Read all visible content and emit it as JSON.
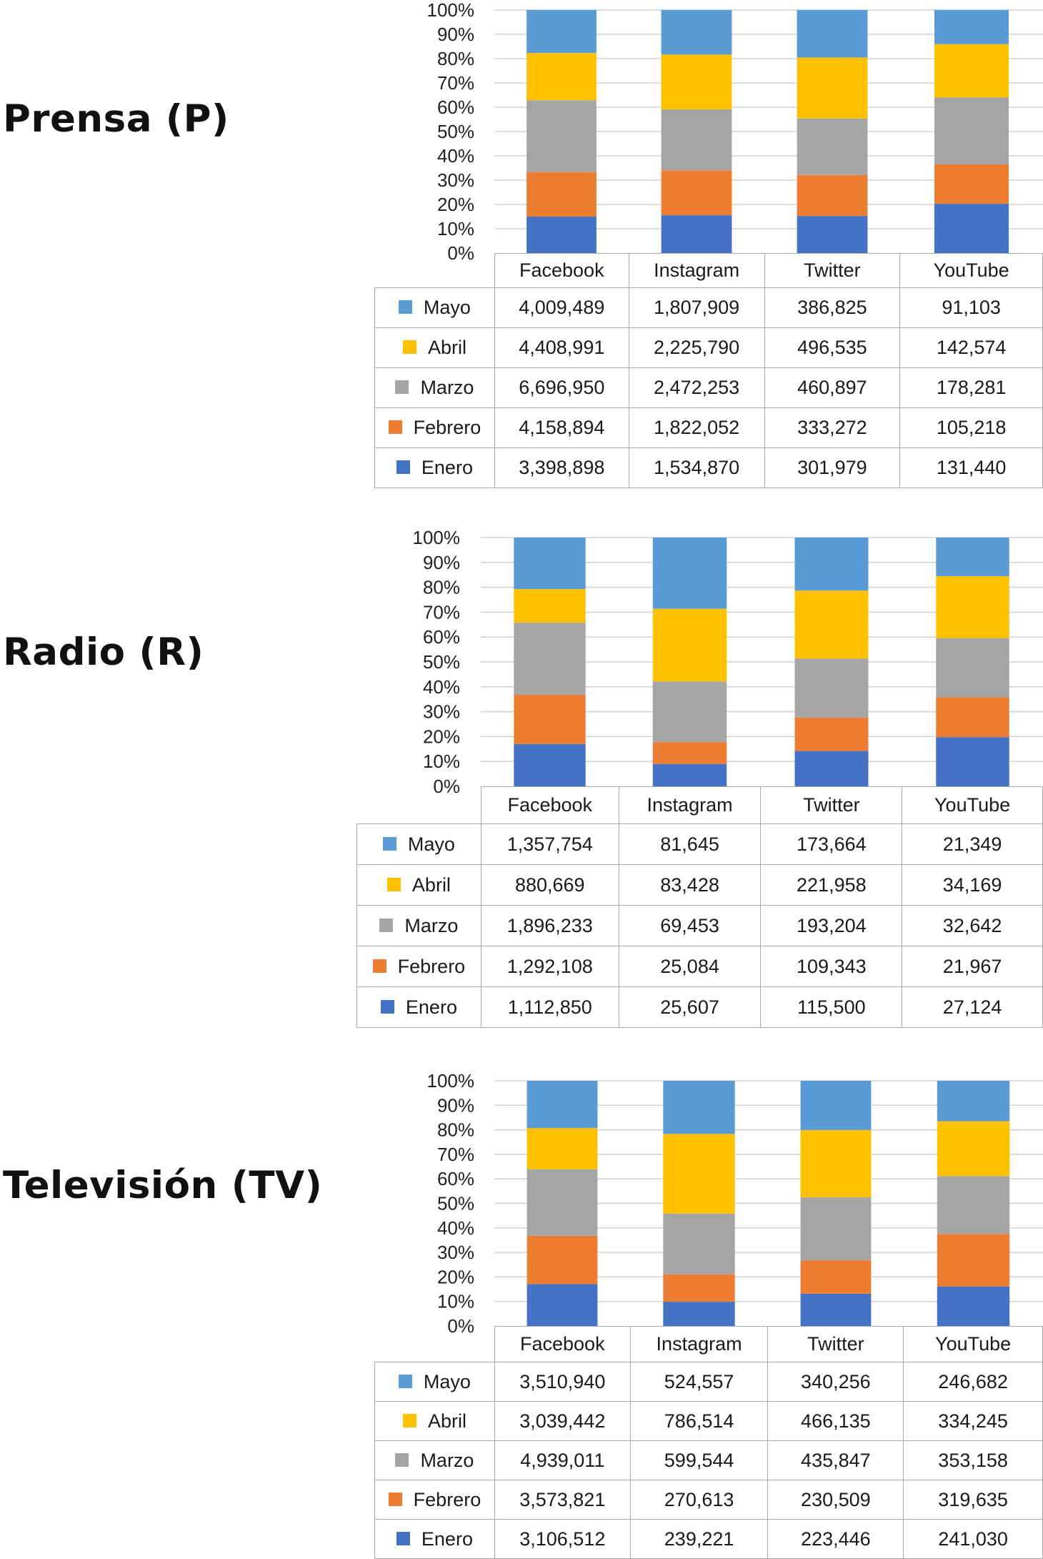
{
  "categories": [
    "Facebook",
    "Instagram",
    "Twitter",
    "YouTube"
  ],
  "legend_order": [
    "Mayo",
    "Abril",
    "Marzo",
    "Febrero",
    "Enero"
  ],
  "colors": {
    "Enero": "#4472c4",
    "Febrero": "#ed7d31",
    "Marzo": "#a5a5a5",
    "Abril": "#ffc000",
    "Mayo": "#5b9bd5"
  },
  "y_ticks": [
    "0%",
    "10%",
    "20%",
    "30%",
    "40%",
    "50%",
    "60%",
    "70%",
    "80%",
    "90%",
    "100%"
  ],
  "chart_data": [
    {
      "type": "bar",
      "stacked": "percent",
      "title": "Prensa (P)",
      "ylim": [
        0,
        100
      ],
      "grid": true,
      "legend": "table-left",
      "categories": [
        "Facebook",
        "Instagram",
        "Twitter",
        "YouTube"
      ],
      "series": [
        {
          "name": "Enero",
          "values": [
            3398898,
            1534870,
            301979,
            131440
          ],
          "labels": [
            "3,398,898",
            "1,534,870",
            "301,979",
            "131,440"
          ]
        },
        {
          "name": "Febrero",
          "values": [
            4158894,
            1822052,
            333272,
            105218
          ],
          "labels": [
            "4,158,894",
            "1,822,052",
            "333,272",
            "105,218"
          ]
        },
        {
          "name": "Marzo",
          "values": [
            6696950,
            2472253,
            460897,
            178281
          ],
          "labels": [
            "6,696,950",
            "2,472,253",
            "460,897",
            "178,281"
          ]
        },
        {
          "name": "Abril",
          "values": [
            4408991,
            2225790,
            496535,
            142574
          ],
          "labels": [
            "4,408,991",
            "2,225,790",
            "496,535",
            "142,574"
          ]
        },
        {
          "name": "Mayo",
          "values": [
            4009489,
            1807909,
            386825,
            91103
          ],
          "labels": [
            "4,009,489",
            "1,807,909",
            "386,825",
            "91,103"
          ]
        }
      ]
    },
    {
      "type": "bar",
      "stacked": "percent",
      "title": "Radio (R)",
      "ylim": [
        0,
        100
      ],
      "grid": true,
      "legend": "table-left",
      "categories": [
        "Facebook",
        "Instagram",
        "Twitter",
        "YouTube"
      ],
      "series": [
        {
          "name": "Enero",
          "values": [
            1112850,
            25607,
            115500,
            27124
          ],
          "labels": [
            "1,112,850",
            "25,607",
            "115,500",
            "27,124"
          ]
        },
        {
          "name": "Febrero",
          "values": [
            1292108,
            25084,
            109343,
            21967
          ],
          "labels": [
            "1,292,108",
            "25,084",
            "109,343",
            "21,967"
          ]
        },
        {
          "name": "Marzo",
          "values": [
            1896233,
            69453,
            193204,
            32642
          ],
          "labels": [
            "1,896,233",
            "69,453",
            "193,204",
            "32,642"
          ]
        },
        {
          "name": "Abril",
          "values": [
            880669,
            83428,
            221958,
            34169
          ],
          "labels": [
            "880,669",
            "83,428",
            "221,958",
            "34,169"
          ]
        },
        {
          "name": "Mayo",
          "values": [
            1357754,
            81645,
            173664,
            21349
          ],
          "labels": [
            "1,357,754",
            "81,645",
            "173,664",
            "21,349"
          ]
        }
      ]
    },
    {
      "type": "bar",
      "stacked": "percent",
      "title": "Televisión (TV)",
      "ylim": [
        0,
        100
      ],
      "grid": true,
      "legend": "table-left",
      "categories": [
        "Facebook",
        "Instagram",
        "Twitter",
        "YouTube"
      ],
      "series": [
        {
          "name": "Enero",
          "values": [
            3106512,
            239221,
            223446,
            241030
          ],
          "labels": [
            "3,106,512",
            "239,221",
            "223,446",
            "241,030"
          ]
        },
        {
          "name": "Febrero",
          "values": [
            3573821,
            270613,
            230509,
            319635
          ],
          "labels": [
            "3,573,821",
            "270,613",
            "230,509",
            "319,635"
          ]
        },
        {
          "name": "Marzo",
          "values": [
            4939011,
            599544,
            435847,
            353158
          ],
          "labels": [
            "4,939,011",
            "599,544",
            "435,847",
            "353,158"
          ]
        },
        {
          "name": "Abril",
          "values": [
            3039442,
            786514,
            466135,
            334245
          ],
          "labels": [
            "3,039,442",
            "786,514",
            "466,135",
            "334,245"
          ]
        },
        {
          "name": "Mayo",
          "values": [
            3510940,
            524557,
            340256,
            246682
          ],
          "labels": [
            "3,510,940",
            "524,557",
            "340,256",
            "246,682"
          ]
        }
      ]
    }
  ]
}
